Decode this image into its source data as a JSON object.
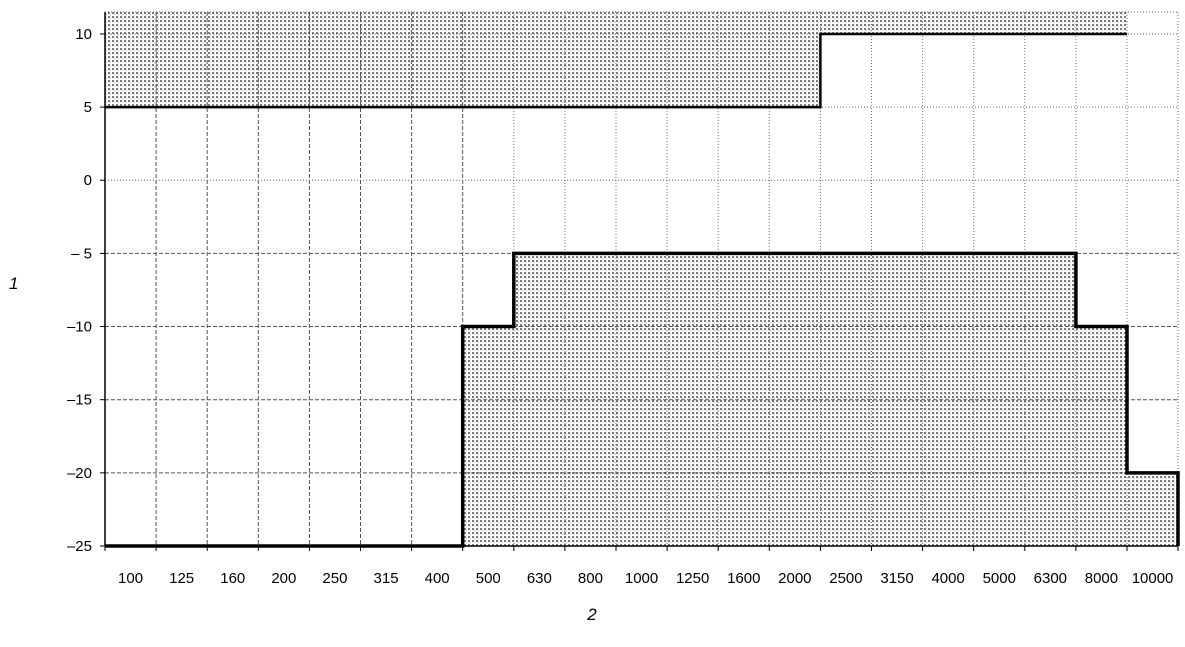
{
  "chart_data": {
    "type": "line",
    "title": "",
    "xlabel": "2",
    "ylabel": "1",
    "categories": [
      "100",
      "125",
      "160",
      "200",
      "250",
      "315",
      "400",
      "500",
      "630",
      "800",
      "1000",
      "1250",
      "1600",
      "2000",
      "2500",
      "3150",
      "4000",
      "5000",
      "6300",
      "8000",
      "10000"
    ],
    "yticks": [
      10,
      5,
      0,
      -5,
      -10,
      -15,
      -20,
      -25
    ],
    "ytick_labels": [
      "10",
      "5",
      "0",
      "– 5",
      "–10",
      "–15",
      "–20",
      "–25"
    ],
    "ylim": [
      -25,
      11.5
    ],
    "grid": true,
    "series": [
      {
        "role": "upper-limit",
        "shaded": "above",
        "points": [
          {
            "x": "100",
            "y": 5
          },
          {
            "x": "2500",
            "y": 5
          },
          {
            "x": "2500",
            "y": 10
          },
          {
            "x": "10000",
            "y": 10
          }
        ]
      },
      {
        "role": "lower-limit",
        "shaded": "below",
        "points": [
          {
            "x": "100",
            "y": -25
          },
          {
            "x": "500",
            "y": -25
          },
          {
            "x": "500",
            "y": -10
          },
          {
            "x": "630",
            "y": -10
          },
          {
            "x": "630",
            "y": -5
          },
          {
            "x": "8000",
            "y": -5
          },
          {
            "x": "8000",
            "y": -10
          },
          {
            "x": "10000",
            "y": -10
          },
          {
            "x": "10000",
            "y": -20
          },
          {
            "x": "10000+",
            "y": -20
          },
          {
            "x": "10000+",
            "y": -25
          }
        ]
      }
    ]
  }
}
